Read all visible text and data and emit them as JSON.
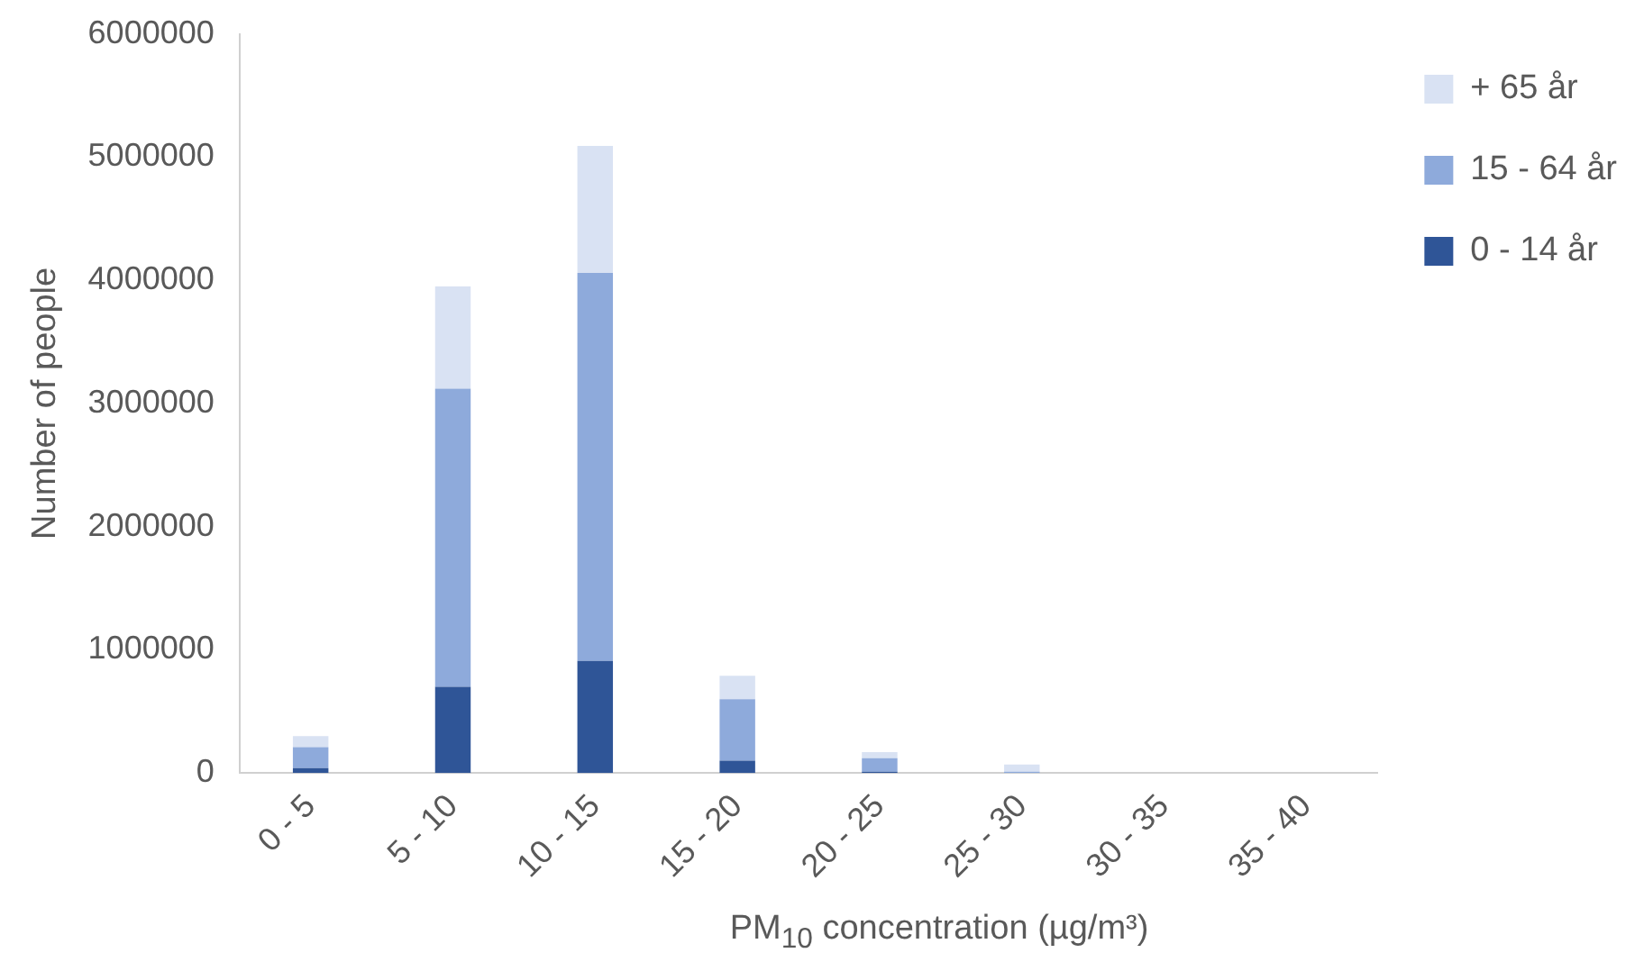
{
  "chart_data": {
    "type": "bar",
    "stacked": true,
    "xlabel": "PM$_{10}$ concentration (µg/m³)",
    "ylabel": "Number of people",
    "categories": [
      "0 - 5",
      "5 - 10",
      "10 - 15",
      "15 - 20",
      "20 - 25",
      "25 - 30",
      "30 - 35",
      "35 - 40"
    ],
    "series": [
      {
        "name": "0 - 14 år",
        "color": "#2f5597",
        "values": [
          40000,
          700000,
          910000,
          100000,
          10000,
          0,
          0,
          0
        ]
      },
      {
        "name": "15 - 64 år",
        "color": "#8eaadb",
        "values": [
          170000,
          2420000,
          3150000,
          500000,
          110000,
          10000,
          0,
          0
        ]
      },
      {
        "name": "+ 65 år",
        "color": "#d9e2f3",
        "values": [
          90000,
          830000,
          1030000,
          190000,
          50000,
          60000,
          0,
          0
        ]
      }
    ],
    "ylim": [
      0,
      6000000
    ],
    "yticks": [
      0,
      1000000,
      2000000,
      3000000,
      4000000,
      5000000,
      6000000
    ],
    "grid": false,
    "legend": "right"
  }
}
